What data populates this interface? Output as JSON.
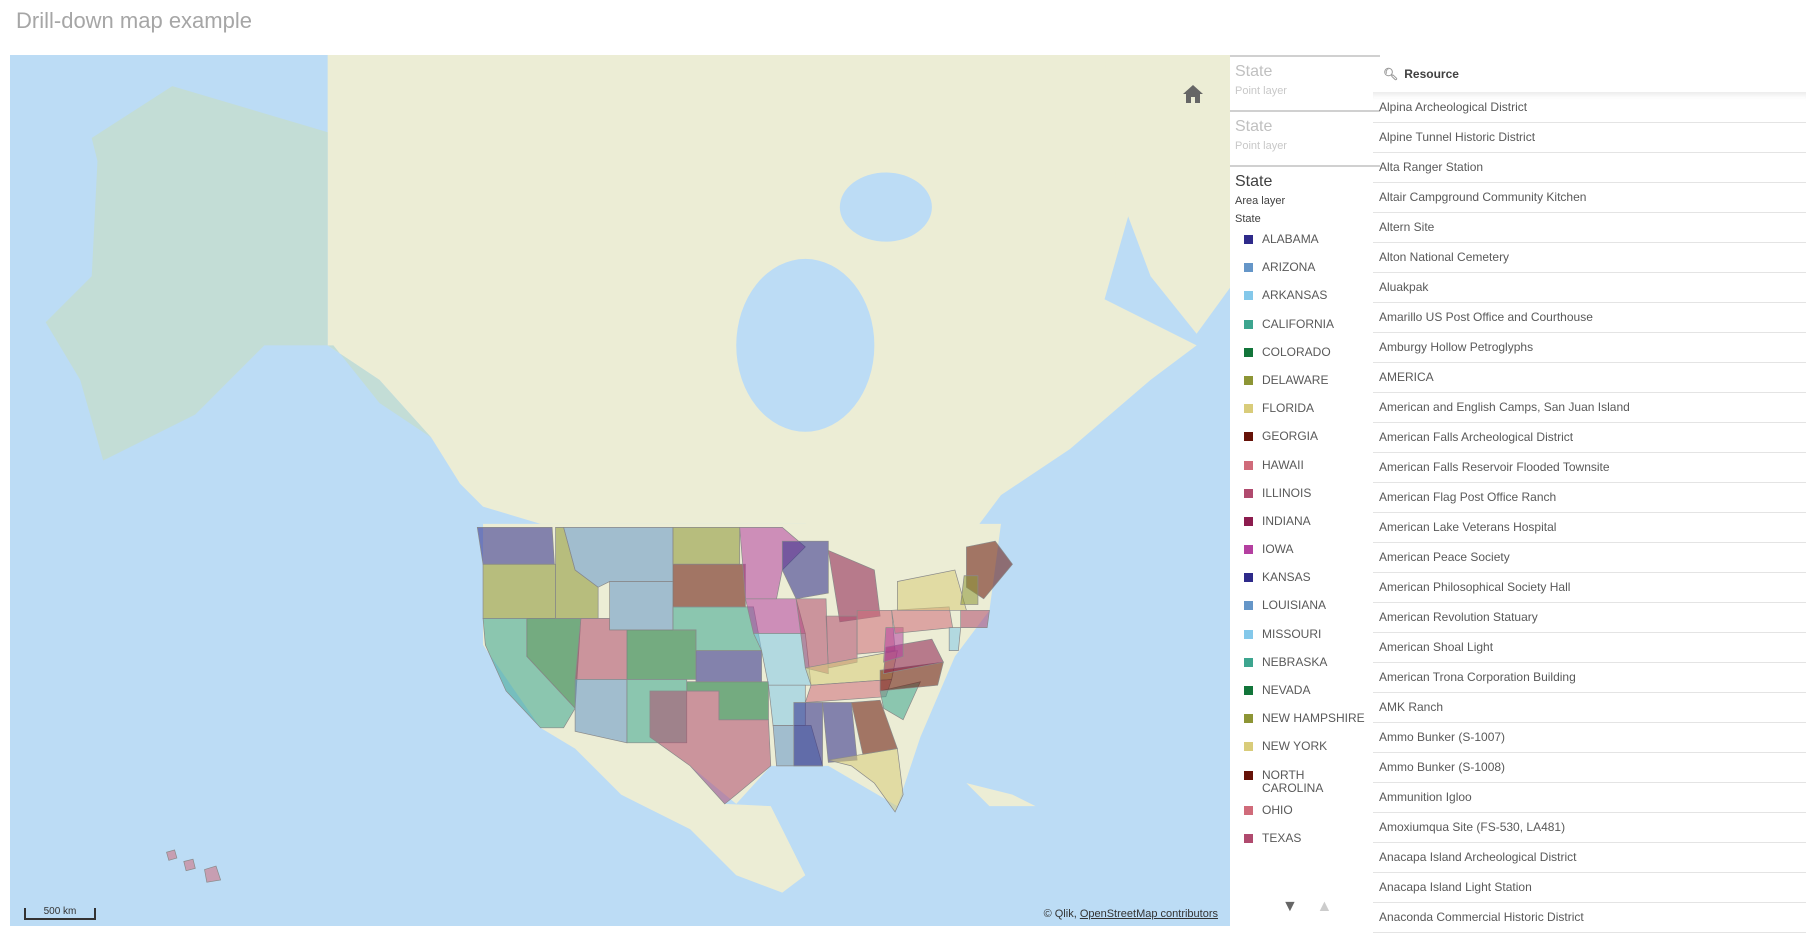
{
  "title": "Drill-down map example",
  "map": {
    "attribution_prefix": "© Qlik, ",
    "attribution_link": "OpenStreetMap contributors",
    "scale_label": "500 km",
    "ocean_color": "#bcdcf5",
    "land_color": "#ecedd5"
  },
  "legend": {
    "layers": [
      {
        "name": "State",
        "type": "Point layer"
      },
      {
        "name": "State",
        "type": "Point layer"
      },
      {
        "name": "State",
        "type": "Area layer"
      }
    ],
    "dimension": "State",
    "items": [
      {
        "label": "ALABAMA",
        "color": "#2e2a8a"
      },
      {
        "label": "ARIZONA",
        "color": "#6596c8"
      },
      {
        "label": "ARKANSAS",
        "color": "#84c8ea"
      },
      {
        "label": "CALIFORNIA",
        "color": "#3da58f"
      },
      {
        "label": "COLORADO",
        "color": "#12753a"
      },
      {
        "label": "DELAWARE",
        "color": "#8d9535"
      },
      {
        "label": "FLORIDA",
        "color": "#d9cc7a"
      },
      {
        "label": "GEORGIA",
        "color": "#661208"
      },
      {
        "label": "HAWAII",
        "color": "#d06b7a"
      },
      {
        "label": "ILLINOIS",
        "color": "#b04a6e"
      },
      {
        "label": "INDIANA",
        "color": "#8c1c4e"
      },
      {
        "label": "IOWA",
        "color": "#b43fa0"
      },
      {
        "label": "KANSAS",
        "color": "#2e2a8a"
      },
      {
        "label": "LOUISIANA",
        "color": "#6596c8"
      },
      {
        "label": "MISSOURI",
        "color": "#84c8ea"
      },
      {
        "label": "NEBRASKA",
        "color": "#3da58f"
      },
      {
        "label": "NEVADA",
        "color": "#12753a"
      },
      {
        "label": "NEW HAMPSHIRE",
        "color": "#8d9535"
      },
      {
        "label": "NEW YORK",
        "color": "#d9cc7a"
      },
      {
        "label": "NORTH CAROLINA",
        "color": "#661208"
      },
      {
        "label": "OHIO",
        "color": "#d06b7a"
      },
      {
        "label": "TEXAS",
        "color": "#b04a6e"
      }
    ],
    "scroll_down": "▼",
    "scroll_up": "▲"
  },
  "resource": {
    "header": "Resource",
    "rows": [
      "Alpina Archeological District",
      "Alpine Tunnel Historic District",
      "Alta Ranger Station",
      "Altair Campground Community Kitchen",
      "Altern Site",
      "Alton National Cemetery",
      "Aluakpak",
      "Amarillo US Post Office and Courthouse",
      "Amburgy Hollow Petroglyphs",
      "AMERICA",
      "American and English Camps, San Juan Island",
      "American Falls Archeological District",
      "American Falls Reservoir Flooded Townsite",
      "American Flag Post Office Ranch",
      "American Lake Veterans Hospital",
      "American Peace Society",
      "American Philosophical Society Hall",
      "American Revolution Statuary",
      "American Shoal Light",
      "American Trona Corporation Building",
      "AMK Ranch",
      "Ammo Bunker (S-1007)",
      "Ammo Bunker (S-1008)",
      "Ammunition Igloo",
      "Amoxiumqua Site (FS-530, LA481)",
      "Anacapa Island Archeological District",
      "Anacapa Island Light Station",
      "Anaconda Commercial Historic District"
    ]
  }
}
